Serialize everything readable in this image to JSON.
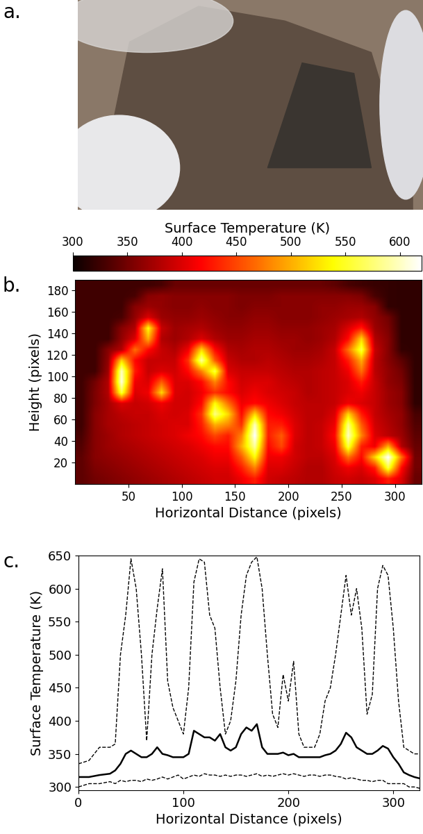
{
  "chart_data": [
    {
      "type": "image",
      "panel_label": "a."
    },
    {
      "type": "heatmap",
      "panel_label": "b.",
      "x_label": "Horizontal Distance (pixels)",
      "y_label": "Height (pixels)",
      "xlim": [
        0,
        325
      ],
      "ylim": [
        0,
        190
      ],
      "xticks": [
        50,
        100,
        150,
        200,
        250,
        300
      ],
      "yticks": [
        20,
        40,
        60,
        80,
        100,
        120,
        140,
        160,
        180
      ],
      "colorbar_label": "Surface Temperature (K)",
      "colorbar_range": [
        300,
        620
      ],
      "colorbar_ticks": [
        300,
        350,
        400,
        450,
        500,
        550,
        600
      ],
      "cells": [
        [
          325,
          325,
          325,
          325,
          325,
          325,
          330,
          345,
          345,
          345,
          345,
          345,
          345,
          345,
          345,
          345,
          345,
          345,
          345,
          340,
          330,
          325,
          322,
          320,
          318,
          318
        ],
        [
          325,
          325,
          325,
          325,
          330,
          360,
          365,
          360,
          360,
          360,
          360,
          360,
          355,
          355,
          355,
          360,
          360,
          360,
          360,
          360,
          360,
          355,
          330,
          320,
          318,
          318
        ],
        [
          325,
          325,
          325,
          325,
          360,
          370,
          365,
          360,
          360,
          365,
          360,
          360,
          355,
          360,
          360,
          360,
          360,
          360,
          365,
          365,
          370,
          370,
          360,
          320,
          318,
          318
        ],
        [
          325,
          325,
          325,
          330,
          365,
          400,
          370,
          365,
          365,
          370,
          365,
          360,
          360,
          365,
          365,
          360,
          360,
          360,
          365,
          370,
          375,
          380,
          365,
          350,
          318,
          318
        ],
        [
          325,
          325,
          325,
          360,
          380,
          540,
          390,
          370,
          375,
          380,
          370,
          365,
          365,
          370,
          370,
          365,
          365,
          365,
          370,
          375,
          400,
          430,
          370,
          355,
          318,
          318
        ],
        [
          325,
          325,
          325,
          365,
          400,
          500,
          380,
          370,
          380,
          400,
          380,
          370,
          370,
          375,
          375,
          370,
          370,
          365,
          370,
          380,
          420,
          520,
          380,
          360,
          318,
          318
        ],
        [
          325,
          325,
          360,
          380,
          470,
          420,
          390,
          380,
          410,
          520,
          420,
          380,
          375,
          380,
          380,
          375,
          370,
          370,
          375,
          390,
          470,
          560,
          390,
          360,
          320,
          318
        ],
        [
          325,
          325,
          365,
          520,
          420,
          390,
          390,
          390,
          440,
          590,
          460,
          390,
          380,
          380,
          385,
          380,
          375,
          375,
          380,
          390,
          430,
          500,
          385,
          360,
          340,
          318
        ],
        [
          325,
          325,
          370,
          600,
          430,
          390,
          400,
          395,
          420,
          480,
          560,
          400,
          390,
          390,
          390,
          385,
          380,
          380,
          385,
          390,
          410,
          470,
          385,
          365,
          350,
          318
        ],
        [
          325,
          350,
          380,
          610,
          410,
          400,
          460,
          400,
          400,
          420,
          480,
          420,
          395,
          400,
          400,
          390,
          385,
          380,
          385,
          390,
          400,
          430,
          390,
          365,
          355,
          318
        ],
        [
          325,
          355,
          380,
          560,
          400,
          410,
          520,
          400,
          395,
          410,
          440,
          420,
          400,
          410,
          400,
          395,
          390,
          380,
          385,
          390,
          400,
          410,
          390,
          370,
          360,
          318
        ],
        [
          325,
          355,
          375,
          400,
          390,
          395,
          410,
          395,
          395,
          420,
          540,
          470,
          410,
          420,
          410,
          400,
          390,
          385,
          385,
          390,
          410,
          400,
          390,
          370,
          360,
          318
        ],
        [
          325,
          360,
          375,
          385,
          390,
          390,
          400,
          395,
          400,
          440,
          580,
          520,
          420,
          520,
          420,
          410,
          395,
          385,
          385,
          400,
          520,
          430,
          390,
          375,
          365,
          330
        ],
        [
          325,
          360,
          375,
          380,
          385,
          390,
          395,
          400,
          400,
          430,
          500,
          480,
          440,
          600,
          430,
          430,
          400,
          385,
          390,
          410,
          580,
          460,
          395,
          380,
          365,
          335
        ],
        [
          330,
          360,
          370,
          380,
          385,
          390,
          395,
          400,
          410,
          420,
          450,
          430,
          480,
          620,
          430,
          460,
          400,
          385,
          390,
          420,
          600,
          480,
          400,
          385,
          370,
          340
        ],
        [
          335,
          360,
          370,
          375,
          380,
          385,
          390,
          395,
          400,
          410,
          420,
          420,
          500,
          590,
          420,
          450,
          395,
          385,
          390,
          410,
          560,
          430,
          410,
          500,
          380,
          345
        ],
        [
          340,
          360,
          365,
          370,
          375,
          380,
          385,
          390,
          395,
          400,
          410,
          410,
          460,
          540,
          410,
          410,
          395,
          385,
          385,
          400,
          470,
          420,
          520,
          620,
          470,
          350
        ],
        [
          340,
          355,
          360,
          365,
          370,
          375,
          380,
          385,
          390,
          395,
          400,
          400,
          430,
          480,
          400,
          400,
          390,
          380,
          380,
          395,
          410,
          400,
          430,
          560,
          420,
          350
        ],
        [
          340,
          350,
          355,
          360,
          365,
          370,
          375,
          380,
          385,
          390,
          395,
          395,
          410,
          430,
          395,
          390,
          385,
          380,
          380,
          390,
          395,
          390,
          400,
          430,
          400,
          345
        ]
      ]
    },
    {
      "type": "line",
      "panel_label": "c.",
      "x_label": "Horizontal Distance (pixels)",
      "y_label": "Surface Temperature (K)",
      "xlim": [
        0,
        325
      ],
      "ylim": [
        295,
        650
      ],
      "xticks": [
        0,
        100,
        200,
        300
      ],
      "yticks": [
        300,
        350,
        400,
        450,
        500,
        550,
        600,
        650
      ],
      "x": [
        0,
        10,
        20,
        30,
        35,
        40,
        45,
        50,
        55,
        60,
        65,
        70,
        75,
        80,
        85,
        90,
        95,
        100,
        105,
        110,
        115,
        120,
        125,
        130,
        135,
        140,
        145,
        150,
        155,
        160,
        165,
        170,
        175,
        180,
        185,
        190,
        195,
        200,
        205,
        210,
        215,
        220,
        225,
        230,
        235,
        240,
        245,
        250,
        255,
        260,
        265,
        270,
        275,
        280,
        285,
        290,
        295,
        300,
        305,
        310,
        315,
        320,
        325
      ],
      "series": [
        {
          "color": "#000000",
          "line_style": "dashed",
          "values": [
            335,
            340,
            360,
            360,
            365,
            500,
            560,
            645,
            600,
            500,
            370,
            500,
            570,
            630,
            460,
            420,
            400,
            380,
            450,
            610,
            645,
            640,
            560,
            540,
            450,
            380,
            400,
            460,
            560,
            620,
            640,
            648,
            600,
            500,
            410,
            390,
            470,
            430,
            490,
            380,
            360,
            360,
            360,
            380,
            430,
            450,
            500,
            560,
            620,
            560,
            600,
            540,
            410,
            440,
            600,
            635,
            620,
            540,
            430,
            360,
            355,
            350,
            350
          ]
        },
        {
          "color": "#000000",
          "line_style": "solid",
          "values": [
            315,
            315,
            318,
            320,
            325,
            335,
            350,
            355,
            350,
            345,
            345,
            350,
            360,
            350,
            348,
            345,
            345,
            345,
            350,
            385,
            380,
            375,
            375,
            370,
            380,
            360,
            355,
            360,
            380,
            390,
            385,
            395,
            360,
            350,
            350,
            350,
            352,
            348,
            350,
            345,
            345,
            345,
            345,
            345,
            348,
            350,
            355,
            365,
            382,
            375,
            360,
            355,
            350,
            350,
            355,
            362,
            358,
            345,
            335,
            322,
            318,
            315,
            313
          ]
        },
        {
          "color": "#000000",
          "line_style": "dashed",
          "values": [
            300,
            305,
            305,
            308,
            305,
            310,
            308,
            310,
            310,
            308,
            312,
            310,
            312,
            315,
            312,
            315,
            318,
            312,
            315,
            318,
            316,
            320,
            318,
            318,
            316,
            318,
            316,
            318,
            318,
            316,
            318,
            320,
            316,
            318,
            316,
            318,
            320,
            318,
            320,
            318,
            316,
            318,
            318,
            316,
            318,
            318,
            316,
            315,
            312,
            314,
            312,
            310,
            310,
            308,
            310,
            310,
            305,
            305,
            305,
            305,
            300,
            300,
            298
          ]
        }
      ]
    }
  ]
}
